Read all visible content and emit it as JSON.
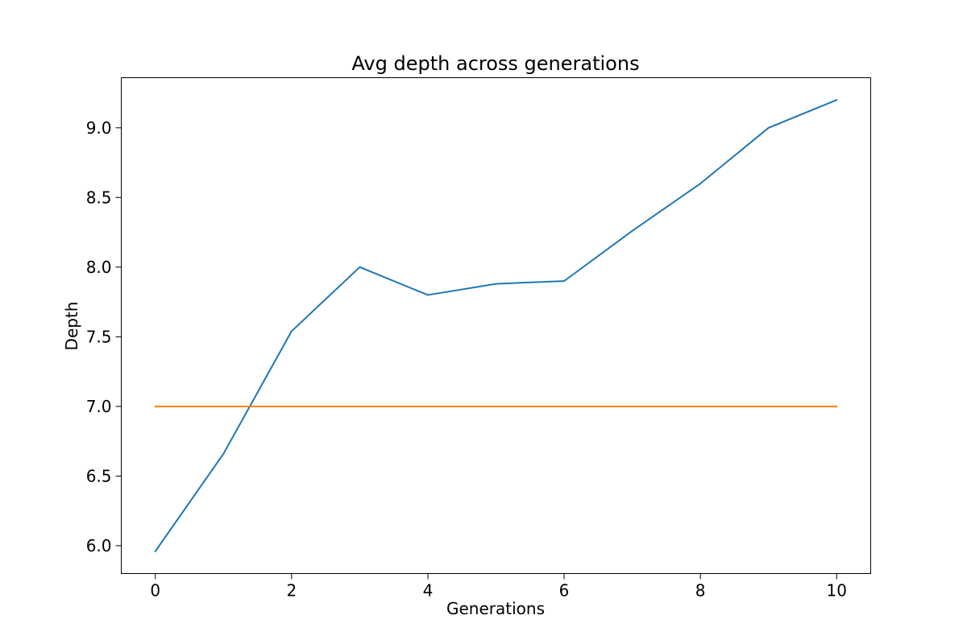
{
  "chart_data": {
    "type": "line",
    "title": "Avg depth across generations",
    "xlabel": "Generations",
    "ylabel": "Depth",
    "xlim": [
      -0.5,
      10.5
    ],
    "ylim": [
      5.8,
      9.36
    ],
    "xticks": [
      0,
      2,
      4,
      6,
      8,
      10
    ],
    "xtick_labels": [
      "0",
      "2",
      "4",
      "6",
      "8",
      "10"
    ],
    "yticks": [
      6.0,
      6.5,
      7.0,
      7.5,
      8.0,
      8.5,
      9.0
    ],
    "ytick_labels": [
      "6.0",
      "6.5",
      "7.0",
      "7.5",
      "8.0",
      "8.5",
      "9.0"
    ],
    "grid": false,
    "x": [
      0,
      1,
      2,
      3,
      4,
      5,
      6,
      7,
      8,
      9,
      10
    ],
    "series": [
      {
        "color": "#1f77b4",
        "values": [
          5.96,
          6.66,
          7.54,
          8.0,
          7.8,
          7.88,
          7.9,
          8.26,
          8.6,
          9.0,
          9.2
        ]
      },
      {
        "color": "#ff7f0e",
        "values": [
          7.0,
          7.0,
          7.0,
          7.0,
          7.0,
          7.0,
          7.0,
          7.0,
          7.0,
          7.0,
          7.0
        ]
      }
    ]
  }
}
